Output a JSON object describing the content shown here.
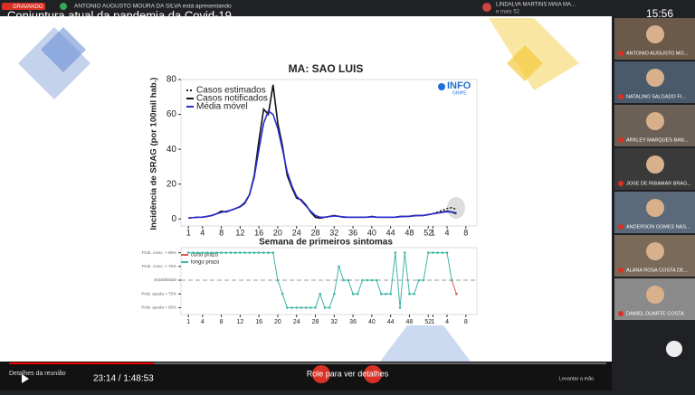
{
  "top_bar": {
    "recording": "GRAVANDO",
    "presenter": "ANTONIO AUGUSTO MOURA DA SILVA está apresentando",
    "participant": "LINDALVA MARTINS MAIA MA...",
    "more": "e mais 52",
    "clock": "15:56"
  },
  "slide": {
    "title": "Conjuntura atual da pandemia da Covid-19",
    "logo": "INFO",
    "logo_sub": "GRIPE"
  },
  "chart_data": [
    {
      "type": "line",
      "title": "MA: SAO LUIS",
      "ylabel": "Incidência de SRAG (por 100mil hab.)",
      "xlabel": "Semana de primeiros sintomas",
      "xlim": [
        0,
        61
      ],
      "ylim": [
        -4,
        80
      ],
      "yticks": [
        0,
        20,
        40,
        60,
        80
      ],
      "xticks": [
        1,
        4,
        8,
        12,
        16,
        20,
        24,
        28,
        32,
        36,
        40,
        44,
        48,
        52,
        {
          "value": 53,
          "label": "1"
        },
        {
          "value": 56,
          "label": "4"
        },
        {
          "value": 60,
          "label": "8"
        }
      ],
      "series": [
        {
          "name": "Casos estimados",
          "color": "#222222",
          "dash": true,
          "x": [
            53,
            54,
            55,
            56,
            57,
            58
          ],
          "values": [
            3,
            4,
            5,
            6,
            6.5,
            5.5
          ]
        },
        {
          "name": "Casos notificados",
          "color": "#111111",
          "x": [
            1,
            2,
            3,
            4,
            5,
            6,
            7,
            8,
            9,
            10,
            11,
            12,
            13,
            14,
            15,
            16,
            17,
            18,
            19,
            20,
            21,
            22,
            23,
            24,
            25,
            26,
            27,
            28,
            29,
            30,
            31,
            32,
            33,
            34,
            35,
            36,
            37,
            38,
            39,
            40,
            41,
            42,
            43,
            44,
            45,
            46,
            47,
            48,
            49,
            50,
            51,
            52,
            53,
            54,
            55,
            56,
            57,
            58
          ],
          "values": [
            0.5,
            0.8,
            1,
            1,
            1.5,
            2,
            3,
            4.5,
            4,
            5,
            6,
            7,
            9,
            14,
            25,
            45,
            63,
            60,
            77,
            55,
            42,
            25,
            18,
            12,
            11,
            8,
            4,
            1,
            0.5,
            1,
            1.5,
            2,
            1.5,
            1,
            1,
            1,
            1,
            1,
            1,
            1.5,
            1,
            1,
            1,
            1,
            1,
            1.5,
            1.5,
            1.5,
            2,
            2,
            2,
            2.5,
            3,
            3.5,
            4,
            4.5,
            4,
            3
          ]
        },
        {
          "name": "Média móvel",
          "color": "#2b2bd0",
          "x": [
            1,
            2,
            3,
            4,
            5,
            6,
            7,
            8,
            9,
            10,
            11,
            12,
            13,
            14,
            15,
            16,
            17,
            18,
            19,
            20,
            21,
            22,
            23,
            24,
            25,
            26,
            27,
            28,
            29,
            30,
            31,
            32,
            33,
            34,
            35,
            36,
            37,
            38,
            39,
            40,
            41,
            42,
            43,
            44,
            45,
            46,
            47,
            48,
            49,
            50,
            51,
            52,
            53,
            54,
            55,
            56,
            57,
            58
          ],
          "values": [
            0.6,
            0.8,
            1,
            1.1,
            1.5,
            2.1,
            3,
            3.8,
            4.4,
            5,
            6,
            7.2,
            9.5,
            14,
            24,
            40,
            55,
            62,
            60,
            52,
            40,
            27,
            19,
            13,
            10.5,
            7.5,
            4.5,
            2,
            1,
            1,
            1.4,
            1.7,
            1.5,
            1.2,
            1,
            1,
            1,
            1,
            1.1,
            1.3,
            1.1,
            1,
            1,
            1,
            1.1,
            1.3,
            1.5,
            1.6,
            1.8,
            2,
            2.1,
            2.5,
            3,
            3.4,
            3.8,
            4.2,
            4,
            3.5
          ]
        }
      ]
    },
    {
      "type": "line",
      "xlim": [
        0,
        61
      ],
      "ylim": [
        0.5,
        5.5
      ],
      "yticks": [
        {
          "value": 1,
          "label": "Prob. queda > 95%"
        },
        {
          "value": 2,
          "label": "Prob. queda > 75%"
        },
        {
          "value": 3,
          "label": "Estabilidade"
        },
        {
          "value": 4,
          "label": "Prob. cresc. > 75%"
        },
        {
          "value": 5,
          "label": "Prob. cresc. > 95%"
        }
      ],
      "series": [
        {
          "name": "curto prazo",
          "color": "#e05a4f",
          "x": [
            57,
            58
          ],
          "values": [
            3,
            2
          ]
        },
        {
          "name": "longo prazo",
          "color": "#3fb6a8",
          "x": [
            1,
            2,
            3,
            4,
            5,
            6,
            7,
            8,
            9,
            10,
            11,
            12,
            13,
            14,
            15,
            16,
            17,
            18,
            19,
            20,
            21,
            22,
            23,
            24,
            25,
            26,
            27,
            28,
            29,
            30,
            31,
            32,
            33,
            34,
            35,
            36,
            37,
            38,
            39,
            40,
            41,
            42,
            43,
            44,
            45,
            46,
            47,
            48,
            49,
            50,
            51,
            52,
            53,
            54,
            55,
            56,
            57
          ],
          "values": [
            5,
            5,
            5,
            5,
            5,
            5,
            5,
            5,
            5,
            5,
            5,
            5,
            5,
            5,
            5,
            5,
            5,
            5,
            5,
            3,
            2,
            1,
            1,
            1,
            1,
            1,
            1,
            1,
            2,
            1,
            1,
            2,
            4,
            3,
            3,
            2,
            2,
            3,
            3,
            3,
            3,
            2,
            2,
            2,
            5,
            1,
            5,
            2,
            2,
            3,
            3,
            5,
            5,
            5,
            5,
            5,
            3
          ]
        }
      ]
    }
  ],
  "participants": [
    "ANTONIO AUGUSTO MO...",
    "NATALINO SALGADO FI...",
    "ARKLEY MARQUES BAN...",
    "JOSE DE RIBAMAR BRAG...",
    "ANDERSON GOMES NAS...",
    "ALANA ROSA COSTA DE...",
    "DANIEL DUARTE COSTA"
  ],
  "player": {
    "details": "Detalhes da reunião",
    "time": "23:14 / 1:48:53",
    "scroll": "Role para ver detalhes",
    "raise_hand": "Levantar a mão"
  }
}
